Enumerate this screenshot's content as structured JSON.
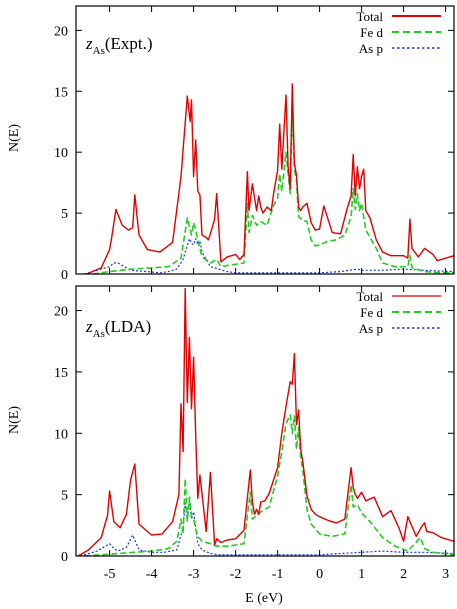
{
  "colors": {
    "total": "#e00000",
    "fe_d": "#22cc22",
    "as_p": "#1a35d8",
    "axis": "#000000"
  },
  "xaxis": {
    "label": "E (eV)",
    "range": [
      -5.8,
      3.2
    ],
    "ticks": [
      -5,
      -4,
      -3,
      -2,
      -1,
      0,
      1,
      2,
      3
    ],
    "tick_labels": [
      "-5",
      "-4",
      "-3",
      "-2",
      "-1",
      "0",
      "1",
      "2",
      "3"
    ]
  },
  "legend": [
    "Total",
    "Fe d",
    "As p"
  ],
  "chart_data": [
    {
      "type": "line",
      "panel": "top",
      "annotation_main": "z",
      "annotation_sub": "As",
      "annotation_tail": "(Expt.)",
      "ylabel": "N(E)",
      "ylim": [
        0,
        22
      ],
      "yticks": [
        0,
        5,
        10,
        15,
        20
      ],
      "ytick_labels": [
        "0",
        "5",
        "10",
        "15",
        "20"
      ],
      "legend_position": "top-right",
      "series": [
        {
          "name": "Total",
          "style": "solid",
          "x": [
            -5.55,
            -5.2,
            -5.0,
            -4.95,
            -4.85,
            -4.7,
            -4.55,
            -4.45,
            -4.4,
            -4.3,
            -4.1,
            -3.8,
            -3.5,
            -3.3,
            -3.15,
            -3.08,
            -3.05,
            -3.0,
            -2.95,
            -2.9,
            -2.85,
            -2.8,
            -2.7,
            -2.65,
            -2.6,
            -2.5,
            -2.45,
            -2.35,
            -2.2,
            -2.0,
            -1.9,
            -1.8,
            -1.72,
            -1.68,
            -1.6,
            -1.5,
            -1.45,
            -1.4,
            -1.35,
            -1.25,
            -1.15,
            -1.1,
            -1.0,
            -0.95,
            -0.9,
            -0.8,
            -0.75,
            -0.7,
            -0.65,
            -0.6,
            -0.55,
            -0.5,
            -0.45,
            -0.4,
            -0.3,
            -0.2,
            -0.1,
            0.0,
            0.1,
            0.2,
            0.3,
            0.5,
            0.65,
            0.75,
            0.8,
            0.85,
            0.9,
            0.95,
            1.0,
            1.05,
            1.1,
            1.2,
            1.35,
            1.5,
            1.7,
            1.85,
            2.0,
            2.1,
            2.15,
            2.2,
            2.35,
            2.5,
            2.7,
            2.8,
            2.9,
            3.0,
            3.2
          ],
          "y": [
            0.0,
            0.5,
            2.0,
            3.0,
            5.3,
            4.0,
            3.6,
            3.8,
            6.5,
            3.2,
            2.0,
            1.8,
            2.6,
            8.0,
            14.6,
            12.5,
            14.3,
            8.0,
            11.0,
            6.8,
            6.5,
            3.2,
            3.0,
            2.8,
            3.3,
            4.5,
            6.6,
            1.0,
            1.4,
            1.6,
            1.2,
            1.6,
            8.4,
            5.2,
            7.4,
            5.2,
            6.4,
            5.5,
            5.0,
            5.5,
            5.2,
            6.5,
            8.5,
            12.3,
            8.6,
            14.7,
            8.8,
            7.0,
            15.6,
            9.1,
            8.1,
            5.5,
            5.2,
            5.5,
            5.8,
            4.2,
            3.6,
            3.7,
            5.6,
            4.5,
            3.4,
            3.3,
            5.3,
            6.4,
            9.8,
            6.4,
            8.8,
            7.0,
            8.0,
            8.6,
            5.2,
            4.6,
            2.8,
            1.8,
            1.5,
            1.5,
            1.5,
            1.3,
            4.5,
            2.1,
            1.4,
            2.1,
            1.6,
            1.1,
            1.2,
            1.3,
            1.5
          ]
        },
        {
          "name": "Fe d",
          "style": "dashed",
          "x": [
            -5.4,
            -5.0,
            -4.5,
            -4.0,
            -3.6,
            -3.3,
            -3.15,
            -3.05,
            -3.0,
            -2.95,
            -2.9,
            -2.8,
            -2.6,
            -2.45,
            -2.35,
            -2.2,
            -2.0,
            -1.8,
            -1.72,
            -1.68,
            -1.6,
            -1.5,
            -1.4,
            -1.25,
            -1.1,
            -1.0,
            -0.95,
            -0.9,
            -0.8,
            -0.7,
            -0.65,
            -0.6,
            -0.55,
            -0.5,
            -0.4,
            -0.3,
            -0.2,
            -0.1,
            0.0,
            0.2,
            0.4,
            0.6,
            0.75,
            0.8,
            0.85,
            0.9,
            0.95,
            1.0,
            1.1,
            1.2,
            1.35,
            1.5,
            1.8,
            2.1,
            2.15,
            2.2,
            2.5,
            2.9,
            3.2
          ],
          "y": [
            0.0,
            0.2,
            0.4,
            0.5,
            0.6,
            1.3,
            4.6,
            3.2,
            4.2,
            3.6,
            2.8,
            1.4,
            0.9,
            1.2,
            0.6,
            0.7,
            0.8,
            0.9,
            5.8,
            3.4,
            4.8,
            4.0,
            4.3,
            4.0,
            5.6,
            6.2,
            8.2,
            6.8,
            10.0,
            6.6,
            13.6,
            8.6,
            7.7,
            4.7,
            4.4,
            4.3,
            2.8,
            2.3,
            2.4,
            2.7,
            2.8,
            3.2,
            4.7,
            7.0,
            5.3,
            6.6,
            5.2,
            5.8,
            3.6,
            3.0,
            2.1,
            0.9,
            0.6,
            0.6,
            1.5,
            0.5,
            0.2,
            0.1,
            0.1
          ]
        },
        {
          "name": "As p",
          "style": "dotted",
          "x": [
            -5.6,
            -5.3,
            -5.0,
            -4.9,
            -4.8,
            -4.5,
            -4.1,
            -3.8,
            -3.6,
            -3.4,
            -3.25,
            -3.1,
            -3.05,
            -3.0,
            -2.95,
            -2.9,
            -2.85,
            -2.8,
            -2.6,
            -2.4,
            -2.2,
            -2.0,
            -1.5,
            -1.0,
            -0.5,
            0.0,
            0.5,
            0.9,
            1.0,
            1.5,
            2.0,
            2.5,
            3.2
          ],
          "y": [
            0.0,
            0.3,
            0.6,
            0.9,
            0.9,
            0.3,
            0.2,
            0.1,
            0.2,
            0.4,
            1.2,
            2.9,
            2.5,
            2.4,
            2.9,
            2.4,
            2.7,
            1.8,
            0.6,
            0.4,
            0.2,
            0.1,
            0.1,
            0.1,
            0.1,
            0.1,
            0.2,
            0.4,
            0.3,
            0.3,
            0.4,
            0.3,
            0.2
          ]
        }
      ]
    },
    {
      "type": "line",
      "panel": "bottom",
      "annotation_main": "z",
      "annotation_sub": "As",
      "annotation_tail": "(LDA)",
      "ylabel": "N(E)",
      "ylim": [
        0,
        22
      ],
      "yticks": [
        0,
        5,
        10,
        15,
        20
      ],
      "ytick_labels": [
        "0",
        "5",
        "10",
        "15",
        "20"
      ],
      "xlabel": "E (eV)",
      "legend_position": "top-right",
      "series": [
        {
          "name": "Total",
          "style": "solid",
          "x": [
            -5.75,
            -5.5,
            -5.2,
            -5.05,
            -5.0,
            -4.9,
            -4.75,
            -4.6,
            -4.5,
            -4.4,
            -4.3,
            -4.0,
            -3.75,
            -3.5,
            -3.35,
            -3.3,
            -3.25,
            -3.2,
            -3.15,
            -3.1,
            -3.05,
            -3.0,
            -2.95,
            -2.9,
            -2.85,
            -2.7,
            -2.6,
            -2.5,
            -2.45,
            -2.35,
            -2.2,
            -2.0,
            -1.8,
            -1.65,
            -1.6,
            -1.55,
            -1.5,
            -1.45,
            -1.4,
            -1.3,
            -1.2,
            -1.0,
            -0.9,
            -0.8,
            -0.7,
            -0.65,
            -0.6,
            -0.55,
            -0.5,
            -0.45,
            -0.4,
            -0.3,
            -0.2,
            -0.1,
            0.0,
            0.2,
            0.4,
            0.6,
            0.75,
            0.8,
            0.85,
            0.9,
            1.0,
            1.1,
            1.3,
            1.5,
            1.7,
            1.9,
            2.0,
            2.1,
            2.3,
            2.45,
            2.5,
            2.55,
            2.7,
            2.9,
            3.2
          ],
          "y": [
            0.0,
            0.5,
            1.5,
            3.3,
            5.3,
            2.8,
            2.3,
            3.4,
            6.2,
            7.5,
            2.6,
            1.7,
            1.8,
            2.8,
            5.0,
            12.4,
            8.5,
            21.8,
            12.5,
            17.8,
            12.0,
            16.2,
            9.8,
            4.7,
            6.6,
            2.0,
            6.8,
            0.9,
            1.4,
            1.1,
            1.3,
            1.4,
            2.1,
            7.0,
            4.4,
            3.4,
            3.8,
            3.4,
            4.4,
            4.5,
            5.1,
            7.2,
            10.0,
            12.2,
            14.2,
            14.0,
            16.5,
            10.7,
            11.9,
            8.7,
            7.7,
            4.9,
            3.8,
            3.4,
            3.2,
            2.9,
            2.7,
            3.0,
            7.2,
            5.6,
            5.0,
            4.7,
            5.2,
            4.5,
            4.8,
            3.2,
            3.7,
            2.2,
            1.2,
            3.2,
            1.6,
            2.5,
            2.7,
            2.0,
            1.9,
            1.5,
            1.2
          ]
        },
        {
          "name": "Fe d",
          "style": "dashed",
          "x": [
            -5.6,
            -5.2,
            -4.8,
            -4.4,
            -4.0,
            -3.6,
            -3.4,
            -3.3,
            -3.25,
            -3.2,
            -3.15,
            -3.1,
            -3.05,
            -3.0,
            -2.95,
            -2.9,
            -2.8,
            -2.6,
            -2.45,
            -2.2,
            -2.0,
            -1.8,
            -1.65,
            -1.6,
            -1.5,
            -1.4,
            -1.2,
            -1.0,
            -0.9,
            -0.8,
            -0.7,
            -0.65,
            -0.6,
            -0.55,
            -0.5,
            -0.45,
            -0.4,
            -0.3,
            -0.2,
            0.0,
            0.3,
            0.6,
            0.75,
            0.8,
            0.9,
            1.0,
            1.2,
            1.5,
            1.8,
            2.1,
            2.4,
            2.5,
            2.7,
            3.2
          ],
          "y": [
            0.0,
            0.1,
            0.2,
            0.3,
            0.4,
            0.6,
            1.2,
            3.0,
            1.8,
            6.3,
            2.8,
            4.8,
            3.2,
            3.0,
            2.2,
            1.6,
            1.2,
            1.0,
            0.8,
            0.8,
            0.9,
            1.0,
            5.2,
            3.0,
            3.3,
            3.6,
            4.0,
            6.5,
            8.5,
            10.8,
            11.5,
            10.0,
            11.4,
            8.7,
            10.5,
            8.0,
            7.0,
            3.8,
            2.6,
            1.8,
            1.6,
            1.8,
            5.8,
            4.0,
            4.2,
            3.5,
            2.8,
            1.5,
            0.8,
            0.4,
            1.5,
            0.6,
            0.3,
            0.1
          ]
        },
        {
          "name": "As p",
          "style": "dotted",
          "x": [
            -5.7,
            -5.3,
            -5.0,
            -4.9,
            -4.8,
            -4.6,
            -4.45,
            -4.3,
            -4.0,
            -3.7,
            -3.4,
            -3.25,
            -3.2,
            -3.15,
            -3.1,
            -3.05,
            -3.0,
            -2.9,
            -2.8,
            -2.6,
            -2.4,
            -2.0,
            -1.5,
            -1.0,
            -0.5,
            0.0,
            0.5,
            1.0,
            1.5,
            2.0,
            2.5,
            3.2
          ],
          "y": [
            0.0,
            0.4,
            1.0,
            0.6,
            0.4,
            0.7,
            1.7,
            0.5,
            0.3,
            0.3,
            0.5,
            2.3,
            4.3,
            3.1,
            4.5,
            3.0,
            3.6,
            1.0,
            0.5,
            0.2,
            0.1,
            0.1,
            0.1,
            0.1,
            0.1,
            0.1,
            0.2,
            0.3,
            0.4,
            0.3,
            0.3,
            0.2
          ]
        }
      ]
    }
  ]
}
